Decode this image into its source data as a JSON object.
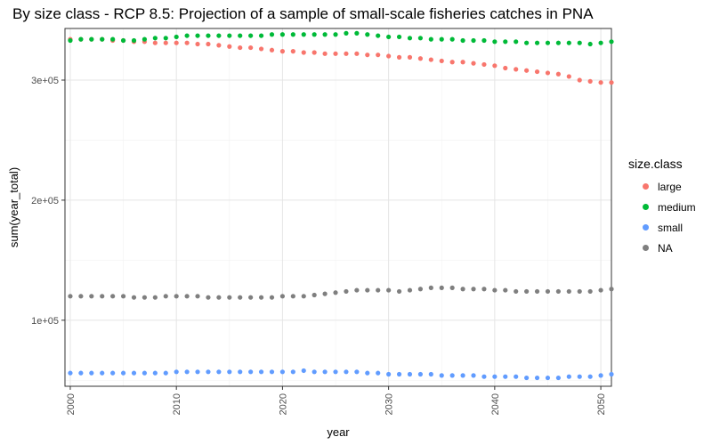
{
  "chart_data": {
    "type": "scatter",
    "title": "By size class - RCP 8.5: Projection of a sample of small-scale fisheries catches in PNA",
    "xlabel": "year",
    "ylabel": "sum(year_total)",
    "xlim": [
      1999.5,
      2051
    ],
    "ylim": [
      45000,
      343000
    ],
    "x_ticks": [
      2000,
      2010,
      2020,
      2030,
      2040,
      2050
    ],
    "x_tick_labels": [
      "2000",
      "2010",
      "2020",
      "2030",
      "2040",
      "2050"
    ],
    "y_ticks": [
      100000,
      200000,
      300000
    ],
    "y_tick_labels": [
      "1e+05",
      "2e+05",
      "3e+05"
    ],
    "grid": true,
    "legend": {
      "title": "size.class",
      "position": "right"
    },
    "x": [
      2000,
      2001,
      2002,
      2003,
      2004,
      2005,
      2006,
      2007,
      2008,
      2009,
      2010,
      2011,
      2012,
      2013,
      2014,
      2015,
      2016,
      2017,
      2018,
      2019,
      2020,
      2021,
      2022,
      2023,
      2024,
      2025,
      2026,
      2027,
      2028,
      2029,
      2030,
      2031,
      2032,
      2033,
      2034,
      2035,
      2036,
      2037,
      2038,
      2039,
      2040,
      2041,
      2042,
      2043,
      2044,
      2045,
      2046,
      2047,
      2048,
      2049,
      2050,
      2051
    ],
    "series": [
      {
        "name": "large",
        "color": "#F8766D",
        "values": [
          334000,
          334000,
          334000,
          334000,
          333000,
          333000,
          332000,
          332000,
          331000,
          331000,
          331000,
          331000,
          330000,
          330000,
          329000,
          328000,
          327000,
          327000,
          326000,
          325000,
          324000,
          324000,
          323000,
          323000,
          322000,
          322000,
          322000,
          322000,
          321000,
          321000,
          320000,
          319000,
          319000,
          318000,
          317000,
          316000,
          315000,
          315000,
          314000,
          313000,
          312000,
          310000,
          309000,
          308000,
          307000,
          306000,
          305000,
          303000,
          300000,
          299000,
          298000,
          298000
        ]
      },
      {
        "name": "medium",
        "color": "#00BA38",
        "values": [
          333000,
          334000,
          334000,
          334000,
          334000,
          333000,
          333000,
          334000,
          335000,
          335000,
          336000,
          337000,
          337000,
          337000,
          337000,
          337000,
          337000,
          337000,
          337000,
          338000,
          338000,
          338000,
          338000,
          338000,
          338000,
          338000,
          339000,
          339000,
          338000,
          337000,
          336000,
          336000,
          335000,
          335000,
          334000,
          334000,
          334000,
          333000,
          333000,
          333000,
          332000,
          332000,
          332000,
          331000,
          331000,
          331000,
          331000,
          331000,
          331000,
          330000,
          331000,
          332000
        ]
      },
      {
        "name": "small",
        "color": "#619CFF",
        "values": [
          56000,
          56000,
          56000,
          56000,
          56000,
          56000,
          56000,
          56000,
          56000,
          56000,
          57000,
          57000,
          57000,
          57000,
          57000,
          57000,
          57000,
          57000,
          57000,
          57000,
          57000,
          57000,
          58000,
          57000,
          57000,
          57000,
          57000,
          57000,
          56000,
          56000,
          55000,
          55000,
          55000,
          55000,
          55000,
          54000,
          54000,
          54000,
          54000,
          53000,
          53000,
          53000,
          53000,
          52000,
          52000,
          52000,
          52000,
          53000,
          53000,
          53000,
          54000,
          55000
        ]
      },
      {
        "name": "NA",
        "color": "#7F7F7F",
        "values": [
          120000,
          120000,
          120000,
          120000,
          120000,
          120000,
          119000,
          119000,
          119000,
          120000,
          120000,
          120000,
          120000,
          119000,
          119000,
          119000,
          119000,
          119000,
          119000,
          119000,
          120000,
          120000,
          120000,
          121000,
          122000,
          123000,
          124000,
          125000,
          125000,
          125000,
          125000,
          124000,
          125000,
          126000,
          127000,
          127000,
          127000,
          126000,
          126000,
          126000,
          125000,
          125000,
          124000,
          124000,
          124000,
          124000,
          124000,
          124000,
          124000,
          124000,
          125000,
          126000
        ]
      }
    ]
  }
}
